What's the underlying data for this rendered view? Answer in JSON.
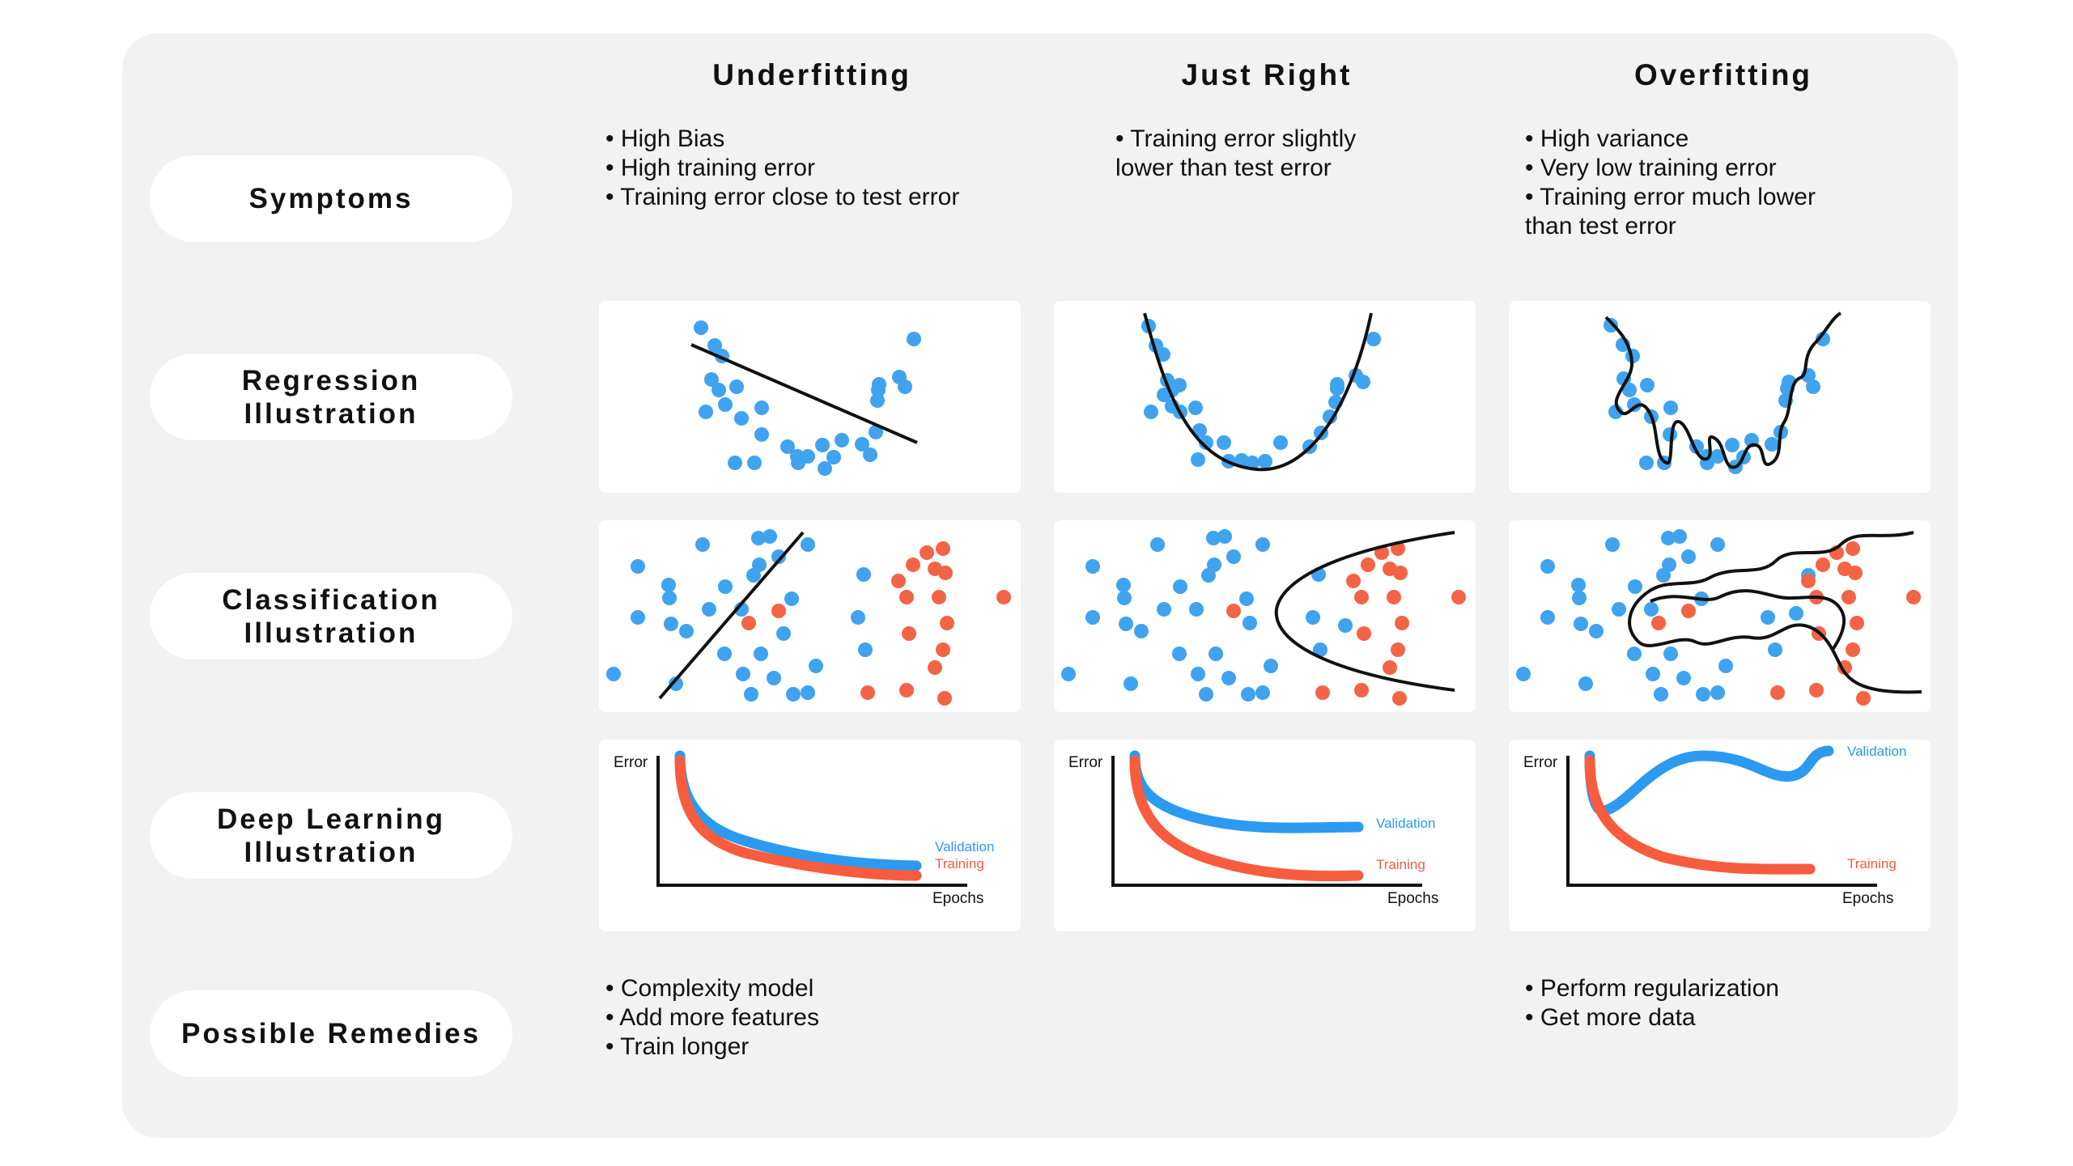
{
  "columns": [
    "Underfitting",
    "Just Right",
    "Overfitting"
  ],
  "rows": {
    "symptoms": "Symptoms",
    "regression": [
      "Regression",
      "Illustration"
    ],
    "classification": [
      "Classification",
      "Illustration"
    ],
    "deep_learning": [
      "Deep Learning",
      "Illustration"
    ],
    "remedies": "Possible Remedies"
  },
  "symptoms": {
    "underfitting": [
      "High Bias",
      "High training error",
      "Training error close to test error"
    ],
    "just_right": [
      "Training error slightly",
      "lower than test error"
    ],
    "overfitting": [
      "High variance",
      "Very low training error",
      "Training error much lower",
      "than test error"
    ]
  },
  "remedies": {
    "underfitting": [
      "Complexity model",
      "Add more features",
      "Train longer"
    ],
    "overfitting": [
      "Perform regularization",
      "Get more data"
    ]
  },
  "charts": {
    "y_axis_label": "Error",
    "x_axis_label": "Epochs",
    "validation_label": "Validation",
    "training_label": "Training"
  },
  "colors": {
    "blue": "#3fa3ef",
    "red": "#f36446",
    "validation_line": "#2b9af0",
    "training_line": "#f75c3e",
    "curve": "#111111",
    "board": "#f1f2f1"
  }
}
